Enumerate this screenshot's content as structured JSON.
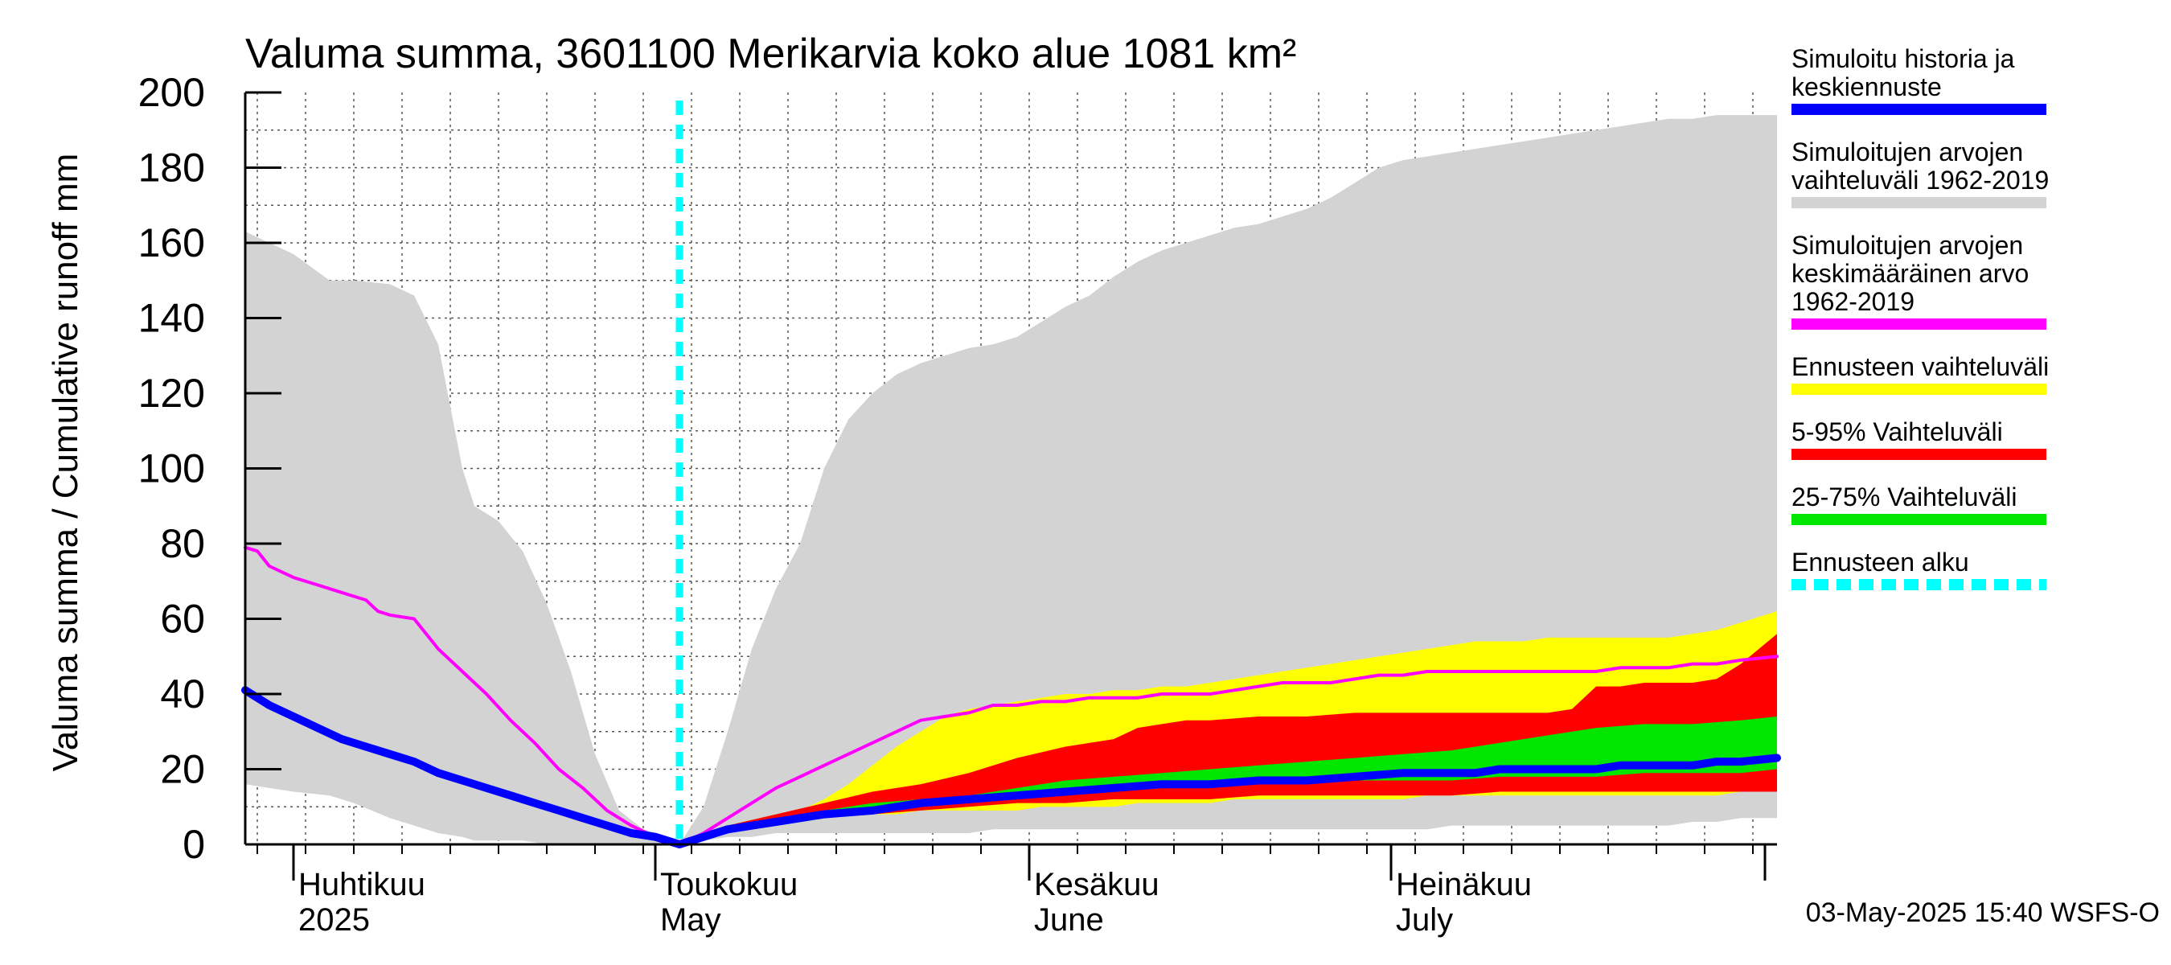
{
  "chart_data": {
    "type": "area",
    "title": "Valuma summa, 3601100 Merikarvia koko alue 1081 km²",
    "ylabel": "Valuma summa / Cumulative runoff    mm",
    "ylim": [
      0,
      200
    ],
    "yticks": [
      0,
      20,
      40,
      60,
      80,
      100,
      120,
      140,
      160,
      180,
      200
    ],
    "xlim": [
      0,
      127
    ],
    "x_unit": "days since 2025-03-28",
    "forecast_start": 36,
    "month_labels": [
      {
        "x": 4,
        "fi": "Huhtikuu",
        "en": "2025"
      },
      {
        "x": 34,
        "fi": "Toukokuu",
        "en": "May"
      },
      {
        "x": 65,
        "fi": "Kesäkuu",
        "en": "June"
      },
      {
        "x": 95,
        "fi": "Heinäkuu",
        "en": "July"
      }
    ],
    "month_ticks": [
      4,
      34,
      65,
      95,
      126
    ],
    "series": [
      {
        "name": "Simuloitujen arvojen vaihteluväli 1962-2019",
        "kind": "band",
        "color": "#d3d3d3",
        "x": [
          0,
          2,
          4,
          7,
          9,
          12,
          14,
          16,
          18,
          19,
          21,
          23,
          25,
          27,
          29,
          31,
          33,
          35,
          36,
          38,
          40,
          42,
          44,
          46,
          48,
          50,
          52,
          54,
          56,
          58,
          60,
          62,
          64,
          66,
          68,
          70,
          72,
          74,
          76,
          78,
          80,
          82,
          84,
          86,
          88,
          90,
          92,
          94,
          96,
          98,
          100,
          102,
          104,
          106,
          108,
          110,
          112,
          114,
          116,
          118,
          120,
          122,
          124,
          127
        ],
        "upper": [
          163,
          160,
          157,
          150,
          150,
          149,
          146,
          133,
          100,
          90,
          86,
          78,
          64,
          46,
          24,
          9,
          4,
          2,
          0,
          10,
          30,
          52,
          68,
          80,
          100,
          113,
          120,
          125,
          128,
          130,
          132,
          133,
          135,
          139,
          143,
          146,
          151,
          155,
          158,
          160,
          162,
          164,
          165,
          167,
          169,
          172,
          176,
          180,
          182,
          183,
          184,
          185,
          186,
          187,
          188,
          189,
          190,
          191,
          192,
          193,
          193,
          194,
          194,
          194
        ],
        "lower": [
          16,
          15,
          14,
          13,
          11,
          7,
          5,
          3,
          2,
          1,
          1,
          1,
          0,
          0,
          0,
          0,
          0,
          0,
          0,
          1,
          2,
          2,
          3,
          3,
          3,
          3,
          3,
          3,
          3,
          3,
          3,
          4,
          4,
          4,
          4,
          4,
          4,
          4,
          4,
          4,
          4,
          4,
          4,
          4,
          4,
          4,
          4,
          4,
          4,
          4,
          5,
          5,
          5,
          5,
          5,
          5,
          5,
          5,
          5,
          5,
          6,
          6,
          7,
          7
        ]
      },
      {
        "name": "Ennusteen vaihteluväli",
        "kind": "band",
        "color": "#ffff00",
        "x": [
          36,
          40,
          44,
          46,
          48,
          50,
          52,
          54,
          56,
          58,
          60,
          62,
          64,
          66,
          68,
          70,
          72,
          74,
          76,
          78,
          80,
          82,
          84,
          86,
          88,
          90,
          92,
          94,
          96,
          98,
          100,
          102,
          104,
          106,
          108,
          110,
          112,
          114,
          116,
          118,
          120,
          122,
          124,
          127
        ],
        "upper": [
          0,
          5,
          8,
          9,
          12,
          16,
          21,
          26,
          30,
          34,
          36,
          37,
          38,
          39,
          40,
          40,
          41,
          41,
          42,
          42,
          43,
          44,
          45,
          46,
          47,
          48,
          49,
          50,
          51,
          52,
          53,
          54,
          54,
          54,
          55,
          55,
          55,
          55,
          55,
          55,
          56,
          57,
          59,
          62
        ],
        "lower": [
          0,
          4,
          6,
          7,
          8,
          8,
          8,
          8,
          9,
          9,
          9,
          9,
          9,
          10,
          10,
          10,
          10,
          11,
          11,
          11,
          11,
          12,
          12,
          12,
          12,
          12,
          12,
          12,
          12,
          13,
          13,
          13,
          13,
          13,
          13,
          13,
          13,
          13,
          13,
          13,
          13,
          13,
          14,
          14
        ]
      },
      {
        "name": "5-95% Vaihteluväli",
        "kind": "band",
        "color": "#ff0000",
        "x": [
          40,
          44,
          48,
          52,
          56,
          60,
          64,
          68,
          72,
          74,
          76,
          78,
          80,
          84,
          88,
          92,
          96,
          100,
          104,
          108,
          110,
          112,
          114,
          116,
          118,
          120,
          122,
          124,
          127
        ],
        "upper": [
          5,
          8,
          11,
          14,
          16,
          19,
          23,
          26,
          28,
          31,
          32,
          33,
          33,
          34,
          34,
          35,
          35,
          35,
          35,
          35,
          36,
          42,
          42,
          43,
          43,
          43,
          44,
          48,
          56
        ],
        "lower": [
          5,
          6,
          7,
          8,
          9,
          10,
          11,
          11,
          12,
          12,
          12,
          12,
          12,
          13,
          13,
          13,
          13,
          13,
          14,
          14,
          14,
          14,
          14,
          14,
          14,
          14,
          14,
          14,
          14
        ]
      },
      {
        "name": "25-75% Vaihteluväli",
        "kind": "band",
        "color": "#00e600",
        "x": [
          40,
          44,
          48,
          52,
          56,
          60,
          64,
          68,
          72,
          76,
          80,
          84,
          88,
          92,
          96,
          100,
          104,
          108,
          112,
          116,
          120,
          124,
          127
        ],
        "upper": [
          7,
          8,
          9,
          11,
          12,
          13,
          15,
          17,
          18,
          19,
          20,
          21,
          22,
          23,
          24,
          25,
          27,
          29,
          31,
          32,
          32,
          33,
          34
        ],
        "lower": [
          7,
          8,
          9,
          10,
          11,
          12,
          13,
          14,
          14,
          15,
          15,
          16,
          16,
          17,
          17,
          17,
          18,
          18,
          18,
          19,
          19,
          19,
          20
        ]
      },
      {
        "name": "Simuloitujen arvojen keskimääräinen arvo 1962-2019",
        "kind": "line",
        "color": "#ff00ff",
        "x": [
          0,
          1,
          2,
          4,
          6,
          8,
          9,
          10,
          11,
          12,
          14,
          16,
          18,
          20,
          22,
          24,
          26,
          28,
          30,
          32,
          34,
          36,
          38,
          40,
          42,
          44,
          46,
          48,
          50,
          52,
          54,
          56,
          58,
          60,
          62,
          64,
          66,
          68,
          70,
          72,
          74,
          76,
          78,
          80,
          82,
          84,
          86,
          88,
          90,
          92,
          94,
          96,
          98,
          100,
          102,
          104,
          106,
          108,
          110,
          112,
          114,
          116,
          118,
          120,
          122,
          124,
          127
        ],
        "values": [
          79,
          78,
          74,
          71,
          69,
          67,
          66,
          65,
          62,
          61,
          60,
          52,
          46,
          40,
          33,
          27,
          20,
          15,
          9,
          5,
          2,
          0,
          3,
          7,
          11,
          15,
          18,
          21,
          24,
          27,
          30,
          33,
          34,
          35,
          37,
          37,
          38,
          38,
          39,
          39,
          39,
          40,
          40,
          40,
          41,
          42,
          43,
          43,
          43,
          44,
          45,
          45,
          46,
          46,
          46,
          46,
          46,
          46,
          46,
          46,
          47,
          47,
          47,
          48,
          48,
          49,
          50
        ]
      },
      {
        "name": "Simuloitu historia ja keskiennuste",
        "kind": "line",
        "color": "#0000ff",
        "x": [
          0,
          2,
          4,
          6,
          8,
          10,
          12,
          14,
          16,
          18,
          20,
          22,
          24,
          26,
          28,
          30,
          32,
          34,
          36,
          38,
          40,
          44,
          48,
          52,
          56,
          60,
          64,
          68,
          72,
          76,
          80,
          84,
          88,
          92,
          96,
          100,
          102,
          104,
          106,
          108,
          110,
          112,
          114,
          116,
          118,
          120,
          122,
          124,
          127
        ],
        "values": [
          41,
          37,
          34,
          31,
          28,
          26,
          24,
          22,
          19,
          17,
          15,
          13,
          11,
          9,
          7,
          5,
          3,
          2,
          0,
          2,
          4,
          6,
          8,
          9,
          11,
          12,
          13,
          14,
          15,
          16,
          16,
          17,
          17,
          18,
          19,
          19,
          19,
          20,
          20,
          20,
          20,
          20,
          21,
          21,
          21,
          21,
          22,
          22,
          23
        ]
      }
    ],
    "legend": [
      {
        "label_lines": [
          "Simuloitu historia ja",
          "keskiennuste"
        ],
        "color": "#0000ff",
        "style": "line"
      },
      {
        "label_lines": [
          "Simuloitujen arvojen",
          "vaihteluväli 1962-2019"
        ],
        "color": "#d3d3d3",
        "style": "line"
      },
      {
        "label_lines": [
          "Simuloitujen arvojen",
          "keskimääräinen arvo",
          "   1962-2019"
        ],
        "color": "#ff00ff",
        "style": "line"
      },
      {
        "label_lines": [
          "Ennusteen vaihteluväli"
        ],
        "color": "#ffff00",
        "style": "line"
      },
      {
        "label_lines": [
          "5-95% Vaihteluväli"
        ],
        "color": "#ff0000",
        "style": "line"
      },
      {
        "label_lines": [
          "25-75% Vaihteluväli"
        ],
        "color": "#00e600",
        "style": "line"
      },
      {
        "label_lines": [
          "Ennusteen alku"
        ],
        "color": "#00ffff",
        "style": "dashed"
      }
    ],
    "forecast_line_color": "#00ffff",
    "timestamp": "03-May-2025 15:40 WSFS-O"
  }
}
